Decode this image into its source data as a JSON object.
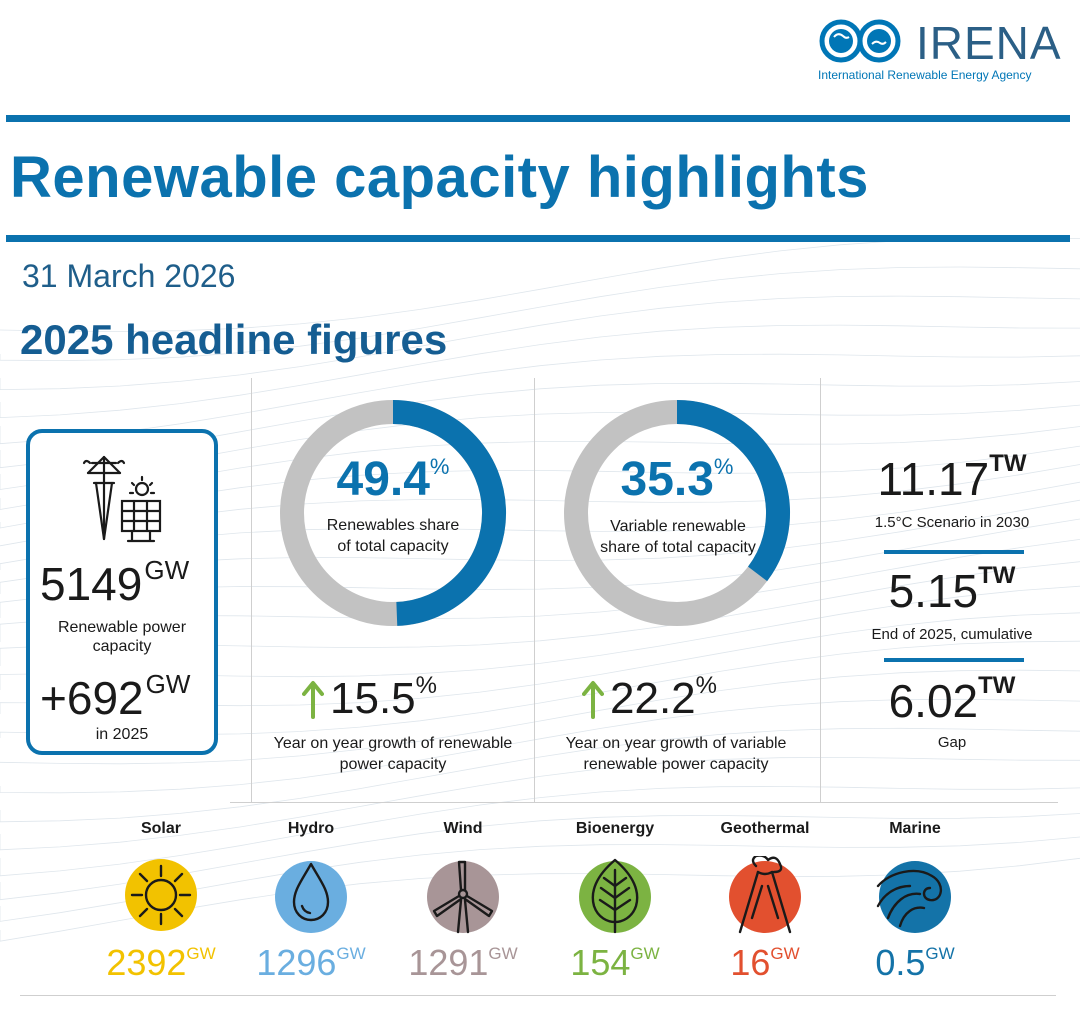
{
  "logo": {
    "name": "IRENA",
    "subtitle": "International Renewable Energy Agency",
    "colors": {
      "blue": "#0076b6",
      "dark": "#2b5f86"
    }
  },
  "header": {
    "title": "Renewable capacity highlights",
    "date": "31 March 2026",
    "subtitle": "2025 headline figures"
  },
  "capacity": {
    "total_value": "5149",
    "total_unit": "GW",
    "total_label": "Renewable power capacity",
    "added_value": "+692",
    "added_unit": "GW",
    "added_label": "in 2025",
    "icon": "power-tower-solar-icon"
  },
  "share": {
    "value": "49.4",
    "unit": "%",
    "label": "Renewables share of total capacity",
    "fraction": 0.494,
    "growth_value": "15.5",
    "growth_unit": "%",
    "growth_label": "Year on year growth of renewable power capacity"
  },
  "variable_share": {
    "value": "35.3",
    "unit": "%",
    "label": "Variable renewable share of total capacity",
    "fraction": 0.353,
    "growth_value": "22.2",
    "growth_unit": "%",
    "growth_label": "Year on year growth of variable renewable power capacity"
  },
  "targets": [
    {
      "value": "11.17",
      "unit": "TW",
      "label": "1.5°C Scenario in 2030"
    },
    {
      "value": "5.15",
      "unit": "TW",
      "label": "End of 2025, cumulative"
    },
    {
      "value": "6.02",
      "unit": "TW",
      "label": "Gap"
    }
  ],
  "technologies": [
    {
      "name": "Solar",
      "value": "2392",
      "unit": "GW",
      "color": "#f2c200",
      "icon": "sun-icon"
    },
    {
      "name": "Hydro",
      "value": "1296",
      "unit": "GW",
      "color": "#6aaee0",
      "icon": "water-drop-icon"
    },
    {
      "name": "Wind",
      "value": "1291",
      "unit": "GW",
      "color": "#a89597",
      "icon": "wind-turbine-icon"
    },
    {
      "name": "Bioenergy",
      "value": "154",
      "unit": "GW",
      "color": "#7cb342",
      "icon": "leaf-icon"
    },
    {
      "name": "Geothermal",
      "value": "16",
      "unit": "GW",
      "color": "#e2502f",
      "icon": "volcano-icon"
    },
    {
      "name": "Marine",
      "value": "0.5",
      "unit": "GW",
      "color": "#1473a8",
      "icon": "wave-icon"
    }
  ],
  "colors": {
    "accent_blue": "#0b72ae",
    "donut_gray": "#c2c2c2",
    "growth_green": "#7cb342"
  }
}
